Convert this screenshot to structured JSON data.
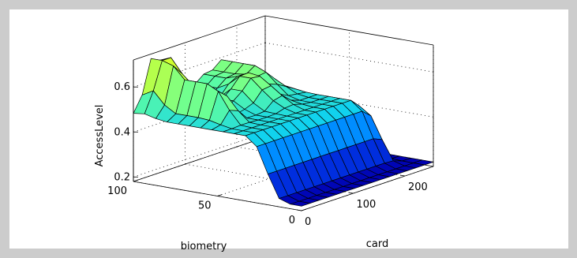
{
  "chart_data": {
    "type": "surface",
    "title": "",
    "xlabel": "card",
    "ylabel": "biometry",
    "zlabel": "AccessLevel",
    "xlim": [
      0,
      255
    ],
    "ylim": [
      0,
      100
    ],
    "zlim": [
      0.18,
      0.72
    ],
    "x_ticks": [
      {
        "value": 0,
        "label": "0"
      },
      {
        "value": 100,
        "label": "100"
      },
      {
        "value": 200,
        "label": "200"
      }
    ],
    "y_ticks": [
      {
        "value": 0,
        "label": "0"
      },
      {
        "value": 50,
        "label": "50"
      },
      {
        "value": 100,
        "label": "100"
      }
    ],
    "z_ticks": [
      {
        "value": 0.2,
        "label": "0.2"
      },
      {
        "value": 0.4,
        "label": "0.4"
      },
      {
        "value": 0.6,
        "label": "0.6"
      }
    ],
    "grid": true,
    "colormap": [
      "#0000b0",
      "#0050ff",
      "#00c8ff",
      "#60ff9f",
      "#d0ff30"
    ],
    "grid_size": 15
  }
}
